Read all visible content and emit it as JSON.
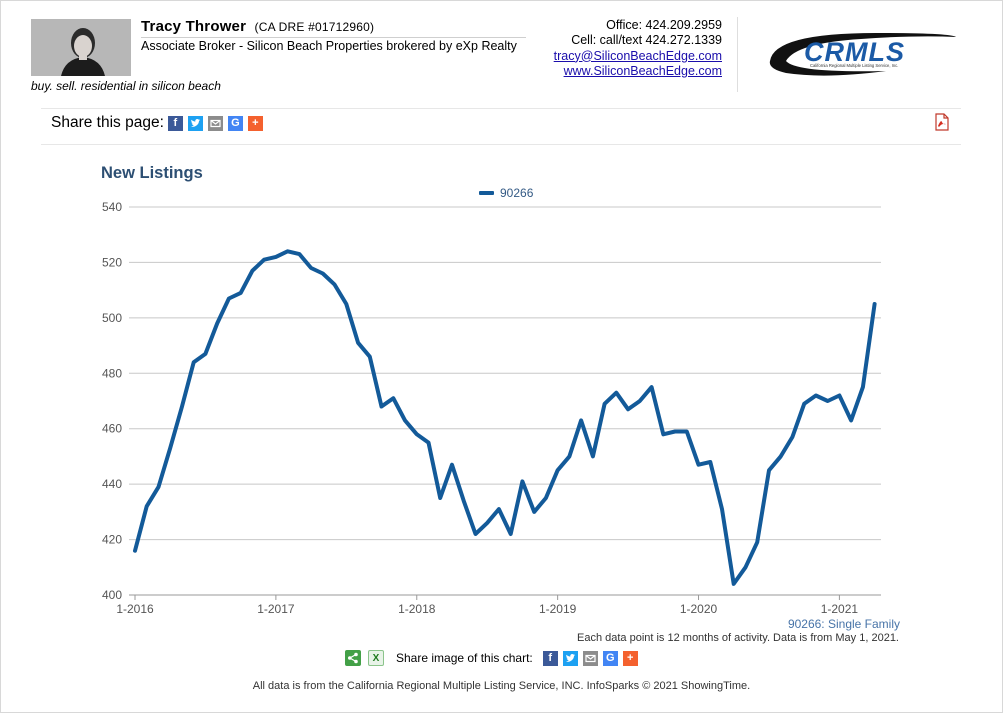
{
  "agent": {
    "name": "Tracy Thrower",
    "dre": "(CA DRE #01712960)",
    "title": "Associate Broker - Silicon Beach Properties brokered by eXp Realty",
    "tagline": "buy. sell. residential in silicon beach"
  },
  "contact": {
    "office": "Office: 424.209.2959",
    "cell": "Cell: call/text 424.272.1339",
    "email": "tracy@SiliconBeachEdge.com",
    "website": "www.SiliconBeachEdge.com"
  },
  "logo": {
    "text": "CRMLS",
    "subtitle": "California Regional Multiple Listing Service, Inc."
  },
  "share": {
    "label": "Share this page:",
    "icons": [
      "facebook-icon",
      "twitter-icon",
      "email-icon",
      "google-icon",
      "plus-icon"
    ]
  },
  "colors": {
    "line": "#135a99",
    "title": "#2d4f73",
    "grid": "#c8c8c8"
  },
  "chart_data": {
    "type": "line",
    "title": "New Listings",
    "legend": "top-center",
    "grid": true,
    "ylim": [
      400,
      540
    ],
    "yticks": [
      400,
      420,
      440,
      460,
      480,
      500,
      520,
      540
    ],
    "xtick_labels": [
      "1-2016",
      "1-2017",
      "1-2018",
      "1-2019",
      "1-2020",
      "1-2021"
    ],
    "x_start": "1-2016",
    "x_end": "4-2021",
    "series": [
      {
        "name": "90266",
        "values": [
          416,
          432,
          439,
          453,
          468,
          484,
          487,
          498,
          507,
          509,
          517,
          521,
          522,
          524,
          523,
          518,
          516,
          512,
          505,
          491,
          486,
          468,
          471,
          463,
          458,
          455,
          435,
          447,
          434,
          422,
          426,
          431,
          422,
          441,
          430,
          435,
          445,
          450,
          463,
          450,
          469,
          473,
          467,
          470,
          475,
          458,
          459,
          459,
          447,
          448,
          431,
          404,
          410,
          419,
          445,
          450,
          457,
          469,
          472,
          470,
          472,
          463,
          475,
          505
        ]
      }
    ],
    "series_note": "90266: Single Family",
    "data_note": "Each data point is 12 months of activity. Data is from May 1, 2021."
  },
  "image_share": {
    "label": "Share image of this chart:"
  },
  "footer": "All data is from the California Regional Multiple Listing Service, INC. InfoSparks © 2021 ShowingTime."
}
